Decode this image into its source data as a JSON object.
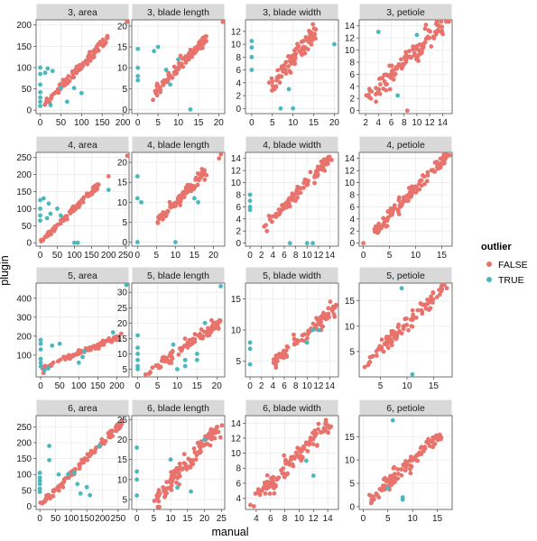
{
  "chart_data": {
    "type": "scatter",
    "xlabel": "manual",
    "ylabel": "plugin",
    "legend": {
      "title": "outlier",
      "placement": "right",
      "entries": [
        {
          "label": "FALSE",
          "color": "#E8736C"
        },
        {
          "label": "TRUE",
          "color": "#4BB8BE"
        }
      ]
    },
    "grid": true,
    "panels": [
      {
        "title": "3, area",
        "xlim": [
          -10,
          215
        ],
        "ylim": [
          -8,
          212
        ],
        "xticks": [
          0,
          50,
          100,
          150,
          200
        ],
        "yticks": [
          0,
          50,
          100,
          150,
          200
        ],
        "inliers": {
          "slope": 1.0,
          "intercept": 5,
          "xmin": 5,
          "xmax": 165,
          "noise": 6,
          "count": 95
        },
        "inlier_extra": [
          [
            210,
            210
          ]
        ],
        "outliers": [
          [
            0,
            100
          ],
          [
            0,
            85
          ],
          [
            0,
            60
          ],
          [
            0,
            42
          ],
          [
            0,
            30
          ],
          [
            0,
            20
          ],
          [
            0,
            10
          ],
          [
            12,
            88
          ],
          [
            18,
            98
          ],
          [
            25,
            12
          ],
          [
            30,
            92
          ],
          [
            50,
            52
          ],
          [
            65,
            20
          ],
          [
            82,
            52
          ],
          [
            100,
            40
          ]
        ]
      },
      {
        "title": "3, blade length",
        "xlim": [
          -1.5,
          21.5
        ],
        "ylim": [
          -1,
          21.5
        ],
        "xticks": [
          0,
          5,
          10,
          15,
          20
        ],
        "yticks": [
          0,
          5,
          10,
          15,
          20
        ],
        "inliers": {
          "slope": 1.0,
          "intercept": 0,
          "xmin": 4,
          "xmax": 17,
          "noise": 0.6,
          "count": 95
        },
        "inlier_extra": [
          [
            21,
            21
          ]
        ],
        "outliers": [
          [
            0,
            14.5
          ],
          [
            0,
            10
          ],
          [
            0,
            8
          ],
          [
            0,
            7
          ],
          [
            4,
            14
          ],
          [
            5,
            15
          ],
          [
            8,
            6
          ],
          [
            10,
            12
          ],
          [
            13,
            0
          ],
          [
            7,
            9.5
          ]
        ]
      },
      {
        "title": "3, blade width",
        "xlim": [
          -1.5,
          21
        ],
        "ylim": [
          -0.8,
          13.8
        ],
        "xticks": [
          0,
          5,
          10,
          15,
          20
        ],
        "yticks": [
          0,
          2,
          4,
          6,
          8,
          10,
          12
        ],
        "inliers": {
          "slope": 0.78,
          "intercept": 0,
          "xmin": 4.5,
          "xmax": 15.5,
          "noise": 0.7,
          "count": 95
        },
        "inlier_extra": [],
        "outliers": [
          [
            0,
            10.5
          ],
          [
            0,
            9.5
          ],
          [
            0,
            8
          ],
          [
            0,
            6
          ],
          [
            20,
            10
          ],
          [
            7,
            0
          ],
          [
            10,
            0
          ],
          [
            9,
            3
          ]
        ]
      },
      {
        "title": "3, petiole",
        "xlim": [
          1,
          15.5
        ],
        "ylim": [
          -0.5,
          15
        ],
        "xticks": [
          2,
          4,
          6,
          8,
          10,
          12,
          14
        ],
        "yticks": [
          0,
          2,
          4,
          6,
          8,
          10,
          12,
          14
        ],
        "inliers": {
          "slope": 1.0,
          "intercept": 0,
          "xmin": 2,
          "xmax": 14,
          "noise": 0.9,
          "count": 110
        },
        "inlier_extra": [
          [
            15,
            15
          ],
          [
            8.5,
            0
          ]
        ],
        "outliers": [
          [
            7,
            2.5
          ],
          [
            10,
            12.5
          ],
          [
            4,
            13
          ]
        ]
      },
      {
        "title": "4, area",
        "xlim": [
          -12,
          260
        ],
        "ylim": [
          -10,
          265
        ],
        "xticks": [
          0,
          50,
          100,
          150,
          200,
          250
        ],
        "yticks": [
          0,
          50,
          100,
          150,
          200,
          250
        ],
        "inliers": {
          "slope": 1.0,
          "intercept": 0,
          "xmin": 5,
          "xmax": 170,
          "noise": 5,
          "count": 95
        },
        "inlier_extra": [
          [
            255,
            255
          ],
          [
            200,
            195
          ]
        ],
        "outliers": [
          [
            0,
            125
          ],
          [
            0,
            100
          ],
          [
            0,
            80
          ],
          [
            0,
            65
          ],
          [
            10,
            130
          ],
          [
            25,
            115
          ],
          [
            30,
            85
          ],
          [
            20,
            72
          ],
          [
            50,
            100
          ],
          [
            60,
            80
          ],
          [
            100,
            0
          ],
          [
            110,
            0
          ],
          [
            200,
            155
          ]
        ]
      },
      {
        "title": "4, blade length",
        "xlim": [
          -1.5,
          23
        ],
        "ylim": [
          -1,
          22.5
        ],
        "xticks": [
          0,
          5,
          10,
          15,
          20
        ],
        "yticks": [
          0,
          5,
          10,
          15,
          20
        ],
        "inliers": {
          "slope": 1.0,
          "intercept": 0,
          "xmin": 5,
          "xmax": 18,
          "noise": 0.7,
          "count": 95
        },
        "inlier_extra": [
          [
            22,
            22
          ],
          [
            21.5,
            21
          ]
        ],
        "outliers": [
          [
            0,
            16.5
          ],
          [
            0,
            11
          ],
          [
            1,
            10
          ],
          [
            0,
            0
          ],
          [
            10,
            0
          ],
          [
            16,
            10
          ],
          [
            15,
            11
          ]
        ]
      },
      {
        "title": "4, blade width",
        "xlim": [
          -0.8,
          15.5
        ],
        "ylim": [
          -0.5,
          15
        ],
        "xticks": [
          0,
          2,
          4,
          6,
          8,
          10,
          12,
          14
        ],
        "yticks": [
          0,
          2,
          4,
          6,
          8,
          10,
          12,
          14
        ],
        "inliers": {
          "slope": 1.0,
          "intercept": 0,
          "xmin": 2.5,
          "xmax": 14,
          "noise": 0.5,
          "count": 95
        },
        "inlier_extra": [],
        "outliers": [
          [
            0,
            8
          ],
          [
            0,
            7
          ],
          [
            0,
            6
          ],
          [
            0,
            5.5
          ],
          [
            7,
            0
          ],
          [
            10,
            0
          ],
          [
            11,
            0
          ]
        ]
      },
      {
        "title": "4, petiole",
        "xlim": [
          -0.8,
          17
        ],
        "ylim": [
          -0.5,
          15
        ],
        "xticks": [
          0,
          5,
          10,
          15
        ],
        "yticks": [
          0,
          2,
          4,
          6,
          8,
          10,
          12,
          14
        ],
        "inliers": {
          "slope": 0.9,
          "intercept": 0,
          "xmin": 1.5,
          "xmax": 16,
          "noise": 0.6,
          "count": 110
        },
        "inlier_extra": [
          [
            0,
            0
          ],
          [
            16.5,
            14.5
          ]
        ],
        "outliers": []
      },
      {
        "title": "5, area",
        "xlim": [
          -12,
          232
        ],
        "ylim": [
          -15,
          480
        ],
        "xticks": [
          0,
          50,
          100,
          150,
          200
        ],
        "yticks": [
          100,
          200,
          300,
          400
        ],
        "inliers": {
          "slope": 0.85,
          "intercept": 25,
          "xmin": 5,
          "xmax": 215,
          "noise": 7,
          "count": 95
        },
        "inlier_extra": [],
        "outliers": [
          [
            0,
            180
          ],
          [
            0,
            160
          ],
          [
            0,
            130
          ],
          [
            0,
            80
          ],
          [
            0,
            60
          ],
          [
            0,
            40
          ],
          [
            10,
            20
          ],
          [
            20,
            30
          ],
          [
            30,
            150
          ],
          [
            50,
            160
          ],
          [
            100,
            60
          ],
          [
            110,
            90
          ],
          [
            115,
            120
          ],
          [
            190,
            220
          ],
          [
            225,
            470
          ]
        ]
      },
      {
        "title": "5, blade length",
        "xlim": [
          -1.5,
          22
        ],
        "ylim": [
          2.5,
          33
        ],
        "xticks": [
          0,
          5,
          10,
          15,
          20
        ],
        "yticks": [
          5,
          10,
          15,
          20,
          25,
          30
        ],
        "inliers": {
          "slope": 0.9,
          "intercept": 1.5,
          "xmin": 2,
          "xmax": 21,
          "noise": 0.8,
          "count": 95
        },
        "inlier_extra": [],
        "outliers": [
          [
            0,
            16
          ],
          [
            0,
            12
          ],
          [
            0,
            10
          ],
          [
            0,
            8
          ],
          [
            0,
            6
          ],
          [
            0,
            5
          ],
          [
            9,
            13
          ],
          [
            10,
            5
          ],
          [
            12,
            8
          ],
          [
            12,
            6
          ],
          [
            15,
            8
          ],
          [
            15,
            10
          ],
          [
            17,
            20
          ],
          [
            21,
            32
          ]
        ]
      },
      {
        "title": "5, blade width",
        "xlim": [
          -0.8,
          15.5
        ],
        "ylim": [
          2.5,
          17.5
        ],
        "xticks": [
          0,
          2,
          4,
          6,
          8,
          10,
          12,
          14
        ],
        "yticks": [
          5,
          10,
          15
        ],
        "inliers": {
          "slope": 0.8,
          "intercept": 1.5,
          "xmin": 4,
          "xmax": 15,
          "noise": 0.6,
          "count": 95
        },
        "inlier_extra": [],
        "outliers": [
          [
            0,
            8
          ],
          [
            0,
            7
          ],
          [
            0,
            4.5
          ],
          [
            11,
            10
          ],
          [
            12,
            10
          ],
          [
            10,
            8
          ]
        ]
      },
      {
        "title": "5, petiole",
        "xlim": [
          1,
          18.5
        ],
        "ylim": [
          0,
          18.5
        ],
        "xticks": [
          5,
          10,
          15
        ],
        "yticks": [
          5,
          10,
          15
        ],
        "inliers": {
          "slope": 1.05,
          "intercept": 0,
          "xmin": 2,
          "xmax": 17,
          "noise": 0.7,
          "count": 110
        },
        "inlier_extra": [
          [
            17.5,
            17.5
          ]
        ],
        "outliers": [
          [
            9,
            17.5
          ],
          [
            11,
            0.5
          ]
        ]
      },
      {
        "title": "6, area",
        "xlim": [
          -12,
          285
        ],
        "ylim": [
          -10,
          285
        ],
        "xticks": [
          0,
          50,
          100,
          150,
          200,
          250
        ],
        "yticks": [
          0,
          50,
          100,
          150,
          200,
          250
        ],
        "inliers": {
          "slope": 1.0,
          "intercept": 0,
          "xmin": 5,
          "xmax": 265,
          "noise": 6,
          "count": 110
        },
        "inlier_extra": [],
        "outliers": [
          [
            0,
            105
          ],
          [
            0,
            90
          ],
          [
            0,
            80
          ],
          [
            0,
            70
          ],
          [
            0,
            55
          ],
          [
            0,
            45
          ],
          [
            30,
            145
          ],
          [
            30,
            190
          ],
          [
            60,
            100
          ],
          [
            90,
            100
          ],
          [
            110,
            105
          ],
          [
            120,
            70
          ],
          [
            130,
            40
          ],
          [
            160,
            35
          ],
          [
            150,
            60
          ],
          [
            190,
            190
          ]
        ]
      },
      {
        "title": "6, blade length",
        "xlim": [
          -1.5,
          26
        ],
        "ylim": [
          2.5,
          26
        ],
        "xticks": [
          0,
          5,
          10,
          15,
          20,
          25
        ],
        "yticks": [
          5,
          10,
          15,
          20,
          25
        ],
        "inliers": {
          "slope": 0.95,
          "intercept": 0,
          "xmin": 5,
          "xmax": 25,
          "noise": 1.2,
          "count": 110
        },
        "inlier_extra": [],
        "outliers": [
          [
            0,
            18
          ],
          [
            0,
            12
          ],
          [
            0,
            10
          ],
          [
            0,
            6
          ],
          [
            10,
            15
          ],
          [
            12,
            8
          ],
          [
            16,
            7
          ],
          [
            20,
            20
          ]
        ]
      },
      {
        "title": "6, blade width",
        "xlim": [
          2.5,
          15.5
        ],
        "ylim": [
          2.5,
          15
        ],
        "xticks": [
          4,
          6,
          8,
          10,
          12,
          14
        ],
        "yticks": [
          4,
          6,
          8,
          10,
          12,
          14
        ],
        "inliers": {
          "slope": 1.0,
          "intercept": 0,
          "xmin": 3.5,
          "xmax": 14.5,
          "noise": 0.7,
          "count": 110
        },
        "inlier_extra": [],
        "outliers": [
          [
            11,
            9
          ],
          [
            12,
            7
          ]
        ]
      },
      {
        "title": "6, petiole",
        "xlim": [
          -0.8,
          18
        ],
        "ylim": [
          -0.6,
          19.5
        ],
        "xticks": [
          0,
          5,
          10,
          15
        ],
        "yticks": [
          0,
          5,
          10,
          15
        ],
        "inliers": {
          "slope": 1.0,
          "intercept": 0,
          "xmin": 1,
          "xmax": 15.5,
          "noise": 0.8,
          "count": 110
        },
        "inlier_extra": [],
        "outliers": [
          [
            6,
            18.5
          ],
          [
            5,
            4
          ],
          [
            8,
            2
          ],
          [
            8,
            1.5
          ]
        ]
      }
    ]
  }
}
